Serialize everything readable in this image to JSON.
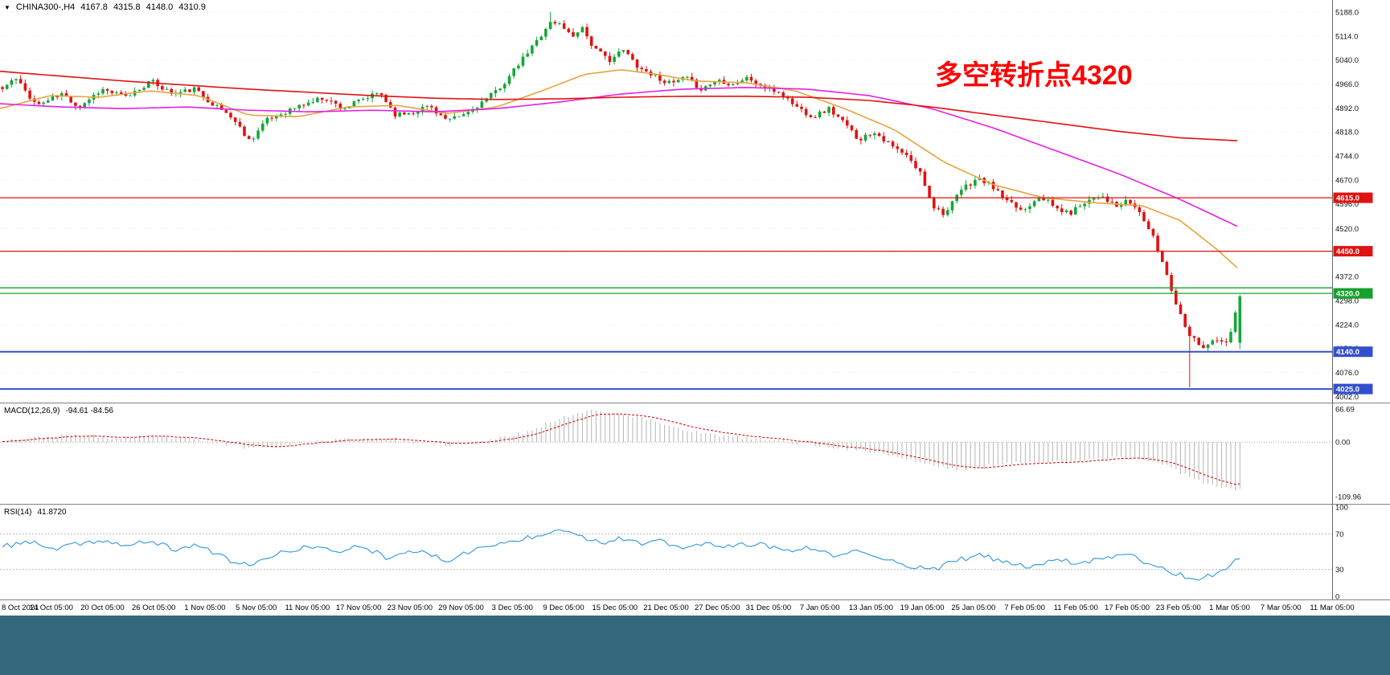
{
  "header": {
    "collapse_icon": "▼",
    "symbol": "CHINA300-,H4",
    "open": "4167.8",
    "high": "4315.8",
    "low": "4148.0",
    "close": "4310.9"
  },
  "annotation": {
    "text": "多空转折点4320",
    "color": "#ff0000"
  },
  "colors": {
    "candle_up": "#14a738",
    "candle_down": "#e01212",
    "ma_fast_orange": "#e8a43c",
    "ma_mid_magenta": "#e520e5",
    "ma_slow_red": "#e01212",
    "macd_histogram": "#b4b4b4",
    "macd_signal": "#cc0000",
    "rsi_line": "#3f9edd",
    "level_red": "#e01212",
    "level_green": "#16a02c",
    "level_blue": "#3350cc",
    "bottom_strip": "#33687d"
  },
  "chart_data": [
    {
      "type": "candlestick",
      "symbol": "CHINA300-",
      "timeframe": "H4",
      "ylim": [
        3983,
        5225
      ],
      "price_axis": [
        {
          "label": "5188.0",
          "value": 5188
        },
        {
          "label": "5114.0",
          "value": 5114
        },
        {
          "label": "5040.0",
          "value": 5040
        },
        {
          "label": "4966.0",
          "value": 4966
        },
        {
          "label": "4892.0",
          "value": 4892
        },
        {
          "label": "4818.0",
          "value": 4818
        },
        {
          "label": "4744.0",
          "value": 4744
        },
        {
          "label": "4670.0",
          "value": 4670
        },
        {
          "label": "4596.0",
          "value": 4596
        },
        {
          "label": "4520.0",
          "value": 4520
        },
        {
          "label": "4446.0",
          "value": 4446
        },
        {
          "label": "4372.0",
          "value": 4372
        },
        {
          "label": "4298.0",
          "value": 4298
        },
        {
          "label": "4224.0",
          "value": 4224
        },
        {
          "label": "4150.0",
          "value": 4150
        },
        {
          "label": "4076.0",
          "value": 4076
        },
        {
          "label": "4002.0",
          "value": 4002
        }
      ],
      "levels": [
        {
          "value": 4615,
          "color": "#e01212",
          "width": 1.3,
          "label": "4615.0"
        },
        {
          "value": 4450,
          "color": "#e01212",
          "width": 1.3,
          "label": "4450.0"
        },
        {
          "value": 4337,
          "color": "#16a02c",
          "width": 1.3
        },
        {
          "value": 4320,
          "color": "#16a02c",
          "width": 1.3,
          "label": "4320.0"
        },
        {
          "value": 4140,
          "color": "#3350cc",
          "width": 2,
          "label": "4140.0"
        },
        {
          "value": 4025,
          "color": "#3350cc",
          "width": 2,
          "label": "4025.0"
        }
      ],
      "last_bar": {
        "o": 4167.8,
        "h": 4315.8,
        "l": 4148.0,
        "c": 4310.9
      },
      "spikes": [
        {
          "f": 0.443,
          "high": 5188
        },
        {
          "f": 0.958,
          "low": 4030
        }
      ],
      "price_path": [
        [
          0,
          4950
        ],
        [
          0.01,
          4985
        ],
        [
          0.028,
          4900
        ],
        [
          0.048,
          4935
        ],
        [
          0.062,
          4895
        ],
        [
          0.08,
          4950
        ],
        [
          0.1,
          4925
        ],
        [
          0.12,
          4975
        ],
        [
          0.138,
          4935
        ],
        [
          0.155,
          4950
        ],
        [
          0.17,
          4905
        ],
        [
          0.185,
          4865
        ],
        [
          0.2,
          4790
        ],
        [
          0.212,
          4850
        ],
        [
          0.228,
          4880
        ],
        [
          0.245,
          4905
        ],
        [
          0.26,
          4925
        ],
        [
          0.275,
          4890
        ],
        [
          0.29,
          4915
        ],
        [
          0.305,
          4940
        ],
        [
          0.318,
          4870
        ],
        [
          0.332,
          4880
        ],
        [
          0.345,
          4900
        ],
        [
          0.36,
          4850
        ],
        [
          0.375,
          4875
        ],
        [
          0.395,
          4930
        ],
        [
          0.408,
          4980
        ],
        [
          0.42,
          5040
        ],
        [
          0.432,
          5100
        ],
        [
          0.442,
          5155
        ],
        [
          0.452,
          5150
        ],
        [
          0.46,
          5110
        ],
        [
          0.468,
          5145
        ],
        [
          0.478,
          5075
        ],
        [
          0.49,
          5040
        ],
        [
          0.502,
          5070
        ],
        [
          0.515,
          5015
        ],
        [
          0.528,
          4990
        ],
        [
          0.54,
          4965
        ],
        [
          0.552,
          4985
        ],
        [
          0.565,
          4950
        ],
        [
          0.578,
          4980
        ],
        [
          0.59,
          4965
        ],
        [
          0.602,
          4985
        ],
        [
          0.615,
          4955
        ],
        [
          0.628,
          4940
        ],
        [
          0.642,
          4895
        ],
        [
          0.655,
          4865
        ],
        [
          0.668,
          4890
        ],
        [
          0.68,
          4845
        ],
        [
          0.692,
          4795
        ],
        [
          0.705,
          4820
        ],
        [
          0.718,
          4775
        ],
        [
          0.73,
          4745
        ],
        [
          0.742,
          4690
        ],
        [
          0.752,
          4590
        ],
        [
          0.762,
          4565
        ],
        [
          0.775,
          4640
        ],
        [
          0.788,
          4675
        ],
        [
          0.8,
          4650
        ],
        [
          0.812,
          4600
        ],
        [
          0.825,
          4575
        ],
        [
          0.838,
          4625
        ],
        [
          0.85,
          4585
        ],
        [
          0.862,
          4565
        ],
        [
          0.875,
          4605
        ],
        [
          0.888,
          4625
        ],
        [
          0.9,
          4585
        ],
        [
          0.91,
          4605
        ],
        [
          0.92,
          4565
        ],
        [
          0.93,
          4490
        ],
        [
          0.94,
          4390
        ],
        [
          0.95,
          4270
        ],
        [
          0.96,
          4190
        ],
        [
          0.97,
          4155
        ],
        [
          0.98,
          4175
        ],
        [
          0.99,
          4165
        ],
        [
          1,
          4310.9
        ]
      ],
      "moving_averages": [
        {
          "name": "fast-orange",
          "color": "#e8a43c",
          "anchors": [
            [
              0,
              4890
            ],
            [
              0.04,
              4930
            ],
            [
              0.08,
              4925
            ],
            [
              0.12,
              4945
            ],
            [
              0.16,
              4930
            ],
            [
              0.2,
              4870
            ],
            [
              0.24,
              4865
            ],
            [
              0.28,
              4895
            ],
            [
              0.32,
              4900
            ],
            [
              0.36,
              4875
            ],
            [
              0.4,
              4895
            ],
            [
              0.44,
              4950
            ],
            [
              0.47,
              4995
            ],
            [
              0.5,
              5010
            ],
            [
              0.53,
              4995
            ],
            [
              0.56,
              4975
            ],
            [
              0.6,
              4970
            ],
            [
              0.64,
              4945
            ],
            [
              0.68,
              4890
            ],
            [
              0.72,
              4825
            ],
            [
              0.76,
              4725
            ],
            [
              0.8,
              4655
            ],
            [
              0.84,
              4615
            ],
            [
              0.88,
              4600
            ],
            [
              0.92,
              4590
            ],
            [
              0.95,
              4545
            ],
            [
              0.98,
              4455
            ],
            [
              1,
              4385
            ]
          ]
        },
        {
          "name": "mid-magenta",
          "color": "#e520e5",
          "anchors": [
            [
              0,
              4905
            ],
            [
              0.05,
              4895
            ],
            [
              0.1,
              4890
            ],
            [
              0.15,
              4895
            ],
            [
              0.2,
              4885
            ],
            [
              0.25,
              4880
            ],
            [
              0.3,
              4885
            ],
            [
              0.35,
              4880
            ],
            [
              0.4,
              4890
            ],
            [
              0.45,
              4910
            ],
            [
              0.5,
              4935
            ],
            [
              0.55,
              4950
            ],
            [
              0.6,
              4955
            ],
            [
              0.65,
              4950
            ],
            [
              0.7,
              4930
            ],
            [
              0.75,
              4890
            ],
            [
              0.8,
              4830
            ],
            [
              0.85,
              4760
            ],
            [
              0.9,
              4690
            ],
            [
              0.95,
              4610
            ],
            [
              1,
              4520
            ]
          ]
        },
        {
          "name": "slow-red",
          "color": "#e01212",
          "anchors": [
            [
              0,
              5005
            ],
            [
              0.1,
              4975
            ],
            [
              0.2,
              4950
            ],
            [
              0.3,
              4930
            ],
            [
              0.35,
              4922
            ],
            [
              0.4,
              4918
            ],
            [
              0.45,
              4920
            ],
            [
              0.5,
              4925
            ],
            [
              0.55,
              4928
            ],
            [
              0.6,
              4928
            ],
            [
              0.65,
              4925
            ],
            [
              0.7,
              4915
            ],
            [
              0.75,
              4895
            ],
            [
              0.8,
              4870
            ],
            [
              0.85,
              4845
            ],
            [
              0.9,
              4820
            ],
            [
              0.95,
              4800
            ],
            [
              1,
              4790
            ]
          ]
        }
      ]
    },
    {
      "type": "bar",
      "name": "MACD",
      "label": "MACD(12,26,9)",
      "values_label": "-94.61 -84.56",
      "current_macd": -94.61,
      "current_signal": -84.56,
      "ylim": [
        -125,
        80
      ],
      "axis": [
        {
          "label": "66.69",
          "value": 66.69
        },
        {
          "label": "0.00",
          "value": 0
        },
        {
          "label": "-109.96",
          "value": -109.96
        }
      ],
      "macd_path": [
        [
          0,
          4
        ],
        [
          0.03,
          10
        ],
        [
          0.06,
          14
        ],
        [
          0.09,
          8
        ],
        [
          0.12,
          12
        ],
        [
          0.15,
          6
        ],
        [
          0.18,
          -4
        ],
        [
          0.2,
          -12
        ],
        [
          0.22,
          -8
        ],
        [
          0.25,
          2
        ],
        [
          0.28,
          6
        ],
        [
          0.31,
          8
        ],
        [
          0.34,
          -2
        ],
        [
          0.36,
          -6
        ],
        [
          0.39,
          2
        ],
        [
          0.42,
          18
        ],
        [
          0.44,
          38
        ],
        [
          0.46,
          55
        ],
        [
          0.475,
          66
        ],
        [
          0.49,
          60
        ],
        [
          0.51,
          52
        ],
        [
          0.53,
          40
        ],
        [
          0.55,
          26
        ],
        [
          0.57,
          16
        ],
        [
          0.59,
          10
        ],
        [
          0.61,
          6
        ],
        [
          0.63,
          2
        ],
        [
          0.65,
          -4
        ],
        [
          0.67,
          -10
        ],
        [
          0.7,
          -18
        ],
        [
          0.72,
          -28
        ],
        [
          0.74,
          -40
        ],
        [
          0.76,
          -52
        ],
        [
          0.78,
          -56
        ],
        [
          0.8,
          -48
        ],
        [
          0.82,
          -42
        ],
        [
          0.84,
          -38
        ],
        [
          0.86,
          -42
        ],
        [
          0.88,
          -36
        ],
        [
          0.9,
          -30
        ],
        [
          0.92,
          -32
        ],
        [
          0.94,
          -48
        ],
        [
          0.96,
          -70
        ],
        [
          0.98,
          -90
        ],
        [
          1,
          -94.61
        ]
      ]
    },
    {
      "type": "line",
      "name": "RSI",
      "label": "RSI(14)",
      "current_label": "41.8720",
      "current": 41.872,
      "levels": [
        70,
        30
      ],
      "axis": [
        {
          "label": "100",
          "value": 100
        },
        {
          "label": "70",
          "value": 70
        },
        {
          "label": "30",
          "value": 30
        },
        {
          "label": "0",
          "value": 0
        }
      ],
      "rsi_path": [
        [
          0,
          55
        ],
        [
          0.02,
          62
        ],
        [
          0.04,
          52
        ],
        [
          0.06,
          58
        ],
        [
          0.08,
          63
        ],
        [
          0.1,
          56
        ],
        [
          0.12,
          62
        ],
        [
          0.14,
          52
        ],
        [
          0.16,
          58
        ],
        [
          0.18,
          42
        ],
        [
          0.2,
          34
        ],
        [
          0.22,
          46
        ],
        [
          0.245,
          56
        ],
        [
          0.27,
          50
        ],
        [
          0.29,
          57
        ],
        [
          0.31,
          44
        ],
        [
          0.33,
          52
        ],
        [
          0.36,
          40
        ],
        [
          0.38,
          52
        ],
        [
          0.4,
          58
        ],
        [
          0.42,
          64
        ],
        [
          0.44,
          72
        ],
        [
          0.455,
          76
        ],
        [
          0.47,
          66
        ],
        [
          0.485,
          60
        ],
        [
          0.5,
          66
        ],
        [
          0.515,
          58
        ],
        [
          0.53,
          62
        ],
        [
          0.55,
          54
        ],
        [
          0.57,
          59
        ],
        [
          0.59,
          55
        ],
        [
          0.61,
          60
        ],
        [
          0.63,
          50
        ],
        [
          0.65,
          54
        ],
        [
          0.67,
          46
        ],
        [
          0.69,
          50
        ],
        [
          0.71,
          42
        ],
        [
          0.73,
          36
        ],
        [
          0.75,
          28
        ],
        [
          0.77,
          40
        ],
        [
          0.79,
          46
        ],
        [
          0.81,
          38
        ],
        [
          0.83,
          33
        ],
        [
          0.85,
          42
        ],
        [
          0.87,
          37
        ],
        [
          0.89,
          44
        ],
        [
          0.91,
          47
        ],
        [
          0.925,
          38
        ],
        [
          0.94,
          30
        ],
        [
          0.955,
          22
        ],
        [
          0.97,
          20
        ],
        [
          0.985,
          28
        ],
        [
          1,
          41.87
        ]
      ]
    }
  ],
  "time_axis": {
    "labels": [
      "8 Oct 2021",
      "14 Oct 05:00",
      "20 Oct 05:00",
      "26 Oct 05:00",
      "1 Nov 05:00",
      "5 Nov 05:00",
      "11 Nov 05:00",
      "17 Nov 05:00",
      "23 Nov 05:00",
      "29 Nov 05:00",
      "3 Dec 05:00",
      "9 Dec 05:00",
      "15 Dec 05:00",
      "21 Dec 05:00",
      "27 Dec 05:00",
      "31 Dec 05:00",
      "7 Jan 05:00",
      "13 Jan 05:00",
      "19 Jan 05:00",
      "25 Jan 05:00",
      "7 Feb 05:00",
      "11 Feb 05:00",
      "17 Feb 05:00",
      "23 Feb 05:00",
      "1 Mar 05:00",
      "7 Mar 05:00",
      "11 Mar 05:00"
    ]
  }
}
